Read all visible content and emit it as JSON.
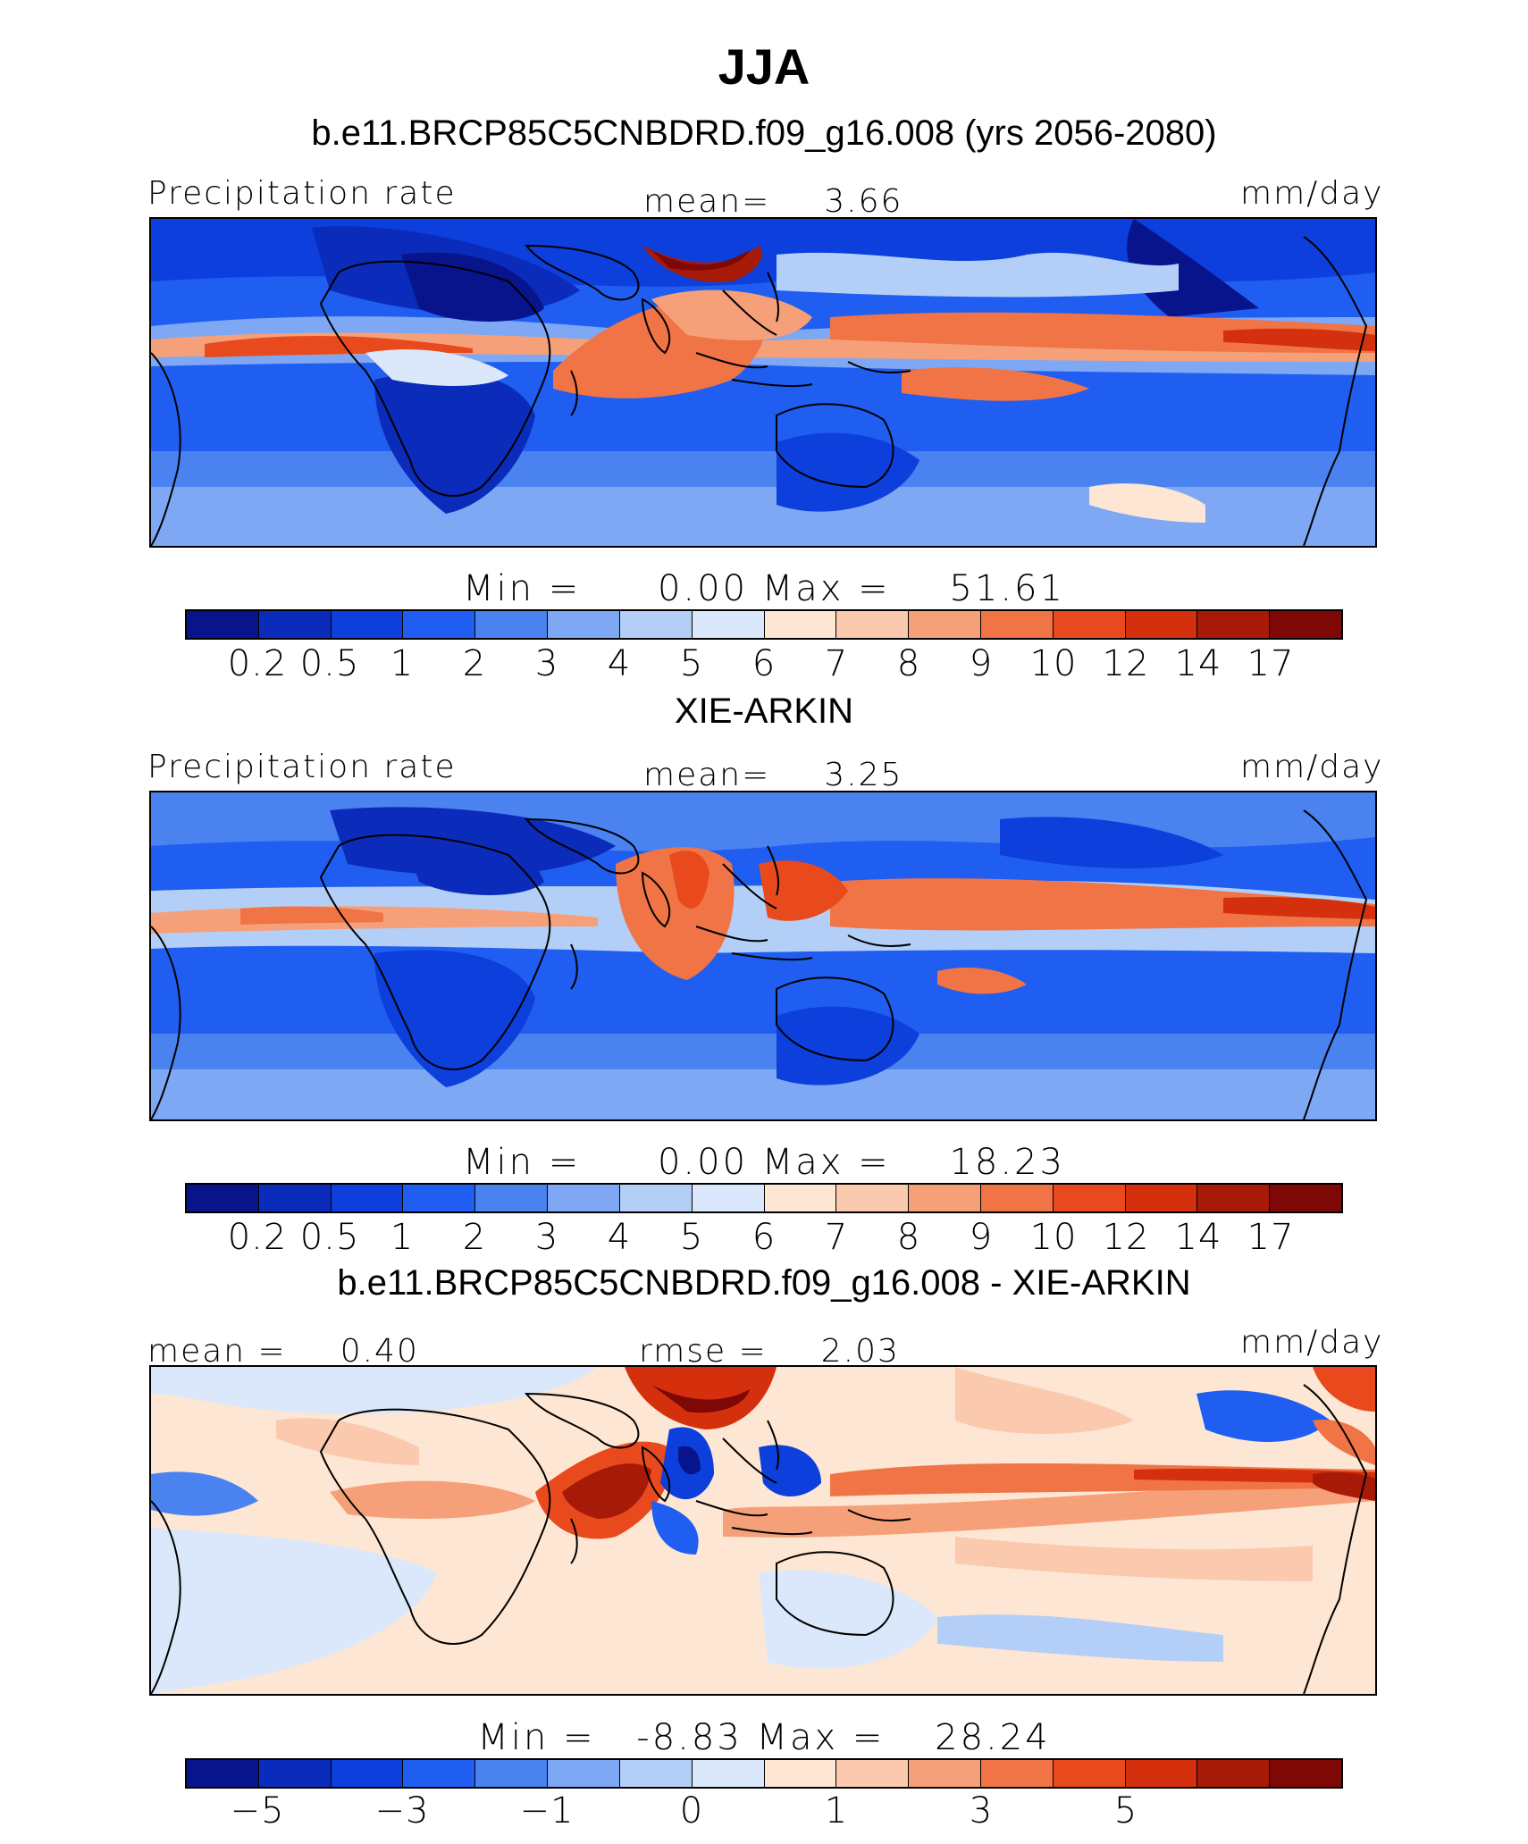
{
  "season": "JJA",
  "palette_abs": [
    "#08148c",
    "#0b2cba",
    "#0d3fdc",
    "#1f5ef0",
    "#4a82f0",
    "#7ea8f4",
    "#b3cff8",
    "#dbe8fb",
    "#fde6d3",
    "#fbc9ad",
    "#f6a07a",
    "#f07445",
    "#e84a1e",
    "#d5300e",
    "#a81a08",
    "#7d0805"
  ],
  "palette_diff": [
    "#08148c",
    "#0b2cba",
    "#0d3fdc",
    "#1f5ef0",
    "#4a82f0",
    "#7ea8f4",
    "#b3cff8",
    "#dbe8fb",
    "#fde6d3",
    "#fbc9ad",
    "#f6a07a",
    "#f07445",
    "#e84a1e",
    "#d5300e",
    "#a81a08",
    "#7d0805"
  ],
  "panels": [
    {
      "subtitle": "b.e11.BRCP85C5CNBDRD.f09_g16.008 (yrs 2056-2080)",
      "left_label": "Precipitation rate",
      "center_label": "mean=",
      "center_value": "3.66",
      "right_label": "mm/day",
      "min_label": "Min",
      "min_value": "0.00",
      "max_label": "Max",
      "max_value": "51.61",
      "ticks": [
        "0.2",
        "0.5",
        "1",
        "2",
        "3",
        "4",
        "5",
        "6",
        "7",
        "8",
        "9",
        "10",
        "12",
        "14",
        "17"
      ]
    },
    {
      "subtitle": "XIE-ARKIN",
      "left_label": "Precipitation rate",
      "center_label": "mean=",
      "center_value": "3.25",
      "right_label": "mm/day",
      "min_label": "Min",
      "min_value": "0.00",
      "max_label": "Max",
      "max_value": "18.23",
      "ticks": [
        "0.2",
        "0.5",
        "1",
        "2",
        "3",
        "4",
        "5",
        "6",
        "7",
        "8",
        "9",
        "10",
        "12",
        "14",
        "17"
      ]
    },
    {
      "subtitle": "b.e11.BRCP85C5CNBDRD.f09_g16.008 - XIE-ARKIN",
      "left_label": "mean =",
      "left_value": "0.40",
      "center_label": "rmse =",
      "center_value": "2.03",
      "right_label": "mm/day",
      "min_label": "Min",
      "min_value": "-8.83",
      "max_label": "Max",
      "max_value": "28.24",
      "ticks": [
        "-5",
        "",
        "-3",
        "",
        "-1",
        "",
        "0",
        "",
        "1",
        "",
        "3",
        "",
        "5",
        "",
        ""
      ]
    }
  ]
}
